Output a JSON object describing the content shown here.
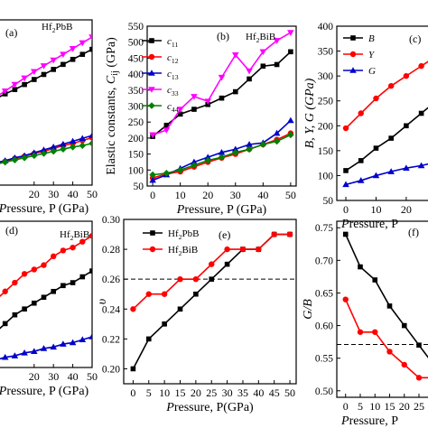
{
  "chart_data": [
    {
      "panel": "(a)",
      "type": "line",
      "title": "",
      "inset_label": "Hf2PbB",
      "xlabel": "Pressure, P (GPa)",
      "ylabel": "",
      "xlim": [
        0,
        50
      ],
      "ylim": [
        50,
        280
      ],
      "xticks": [
        20,
        30,
        40,
        50
      ],
      "yticks": [],
      "series": [
        {
          "name": "c11",
          "color": "#000000",
          "marker": "square",
          "x": [
            0,
            5,
            10,
            15,
            20,
            25,
            30,
            35,
            40,
            45,
            50
          ],
          "y": [
            170,
            177,
            183,
            190,
            197,
            204,
            211,
            218,
            225,
            232,
            239
          ]
        },
        {
          "name": "c33",
          "color": "#ff00ff",
          "marker": "triangle-down",
          "x": [
            0,
            5,
            10,
            15,
            20,
            25,
            30,
            35,
            40,
            45,
            50
          ],
          "y": [
            172,
            181,
            190,
            199,
            208,
            216,
            224,
            232,
            240,
            248,
            256
          ]
        },
        {
          "name": "c12",
          "color": "#ff0000",
          "marker": "circle",
          "x": [
            0,
            5,
            10,
            15,
            20,
            25,
            30,
            35,
            40,
            45,
            50
          ],
          "y": [
            80,
            83,
            87,
            90,
            94,
            97,
            101,
            105,
            108,
            112,
            116
          ]
        },
        {
          "name": "c13",
          "color": "#0000cc",
          "marker": "triangle-up",
          "x": [
            0,
            5,
            10,
            15,
            20,
            25,
            30,
            35,
            40,
            45,
            50
          ],
          "y": [
            81,
            84,
            88,
            91,
            95,
            99,
            103,
            107,
            111,
            115,
            119
          ]
        },
        {
          "name": "c44",
          "color": "#008000",
          "marker": "diamond",
          "x": [
            0,
            5,
            10,
            15,
            20,
            25,
            30,
            35,
            40,
            45,
            50
          ],
          "y": [
            79,
            82,
            85,
            88,
            91,
            94,
            97,
            100,
            103,
            105,
            108
          ]
        }
      ]
    },
    {
      "panel": "(b)",
      "type": "line",
      "title": "",
      "inset_label": "Hf2BiB",
      "xlabel": "Pressure, P (GPa)",
      "ylabel": "Elastic constants, Cij (GPa)",
      "xlim": [
        -2,
        52
      ],
      "ylim": [
        50,
        550
      ],
      "xticks": [
        0,
        10,
        20,
        30,
        40,
        50
      ],
      "yticks": [
        50,
        100,
        150,
        200,
        250,
        300,
        350,
        400,
        450,
        500,
        550
      ],
      "legend": [
        "c11",
        "c12",
        "c13",
        "c33",
        "c44"
      ],
      "series": [
        {
          "name": "c11",
          "color": "#000000",
          "marker": "square",
          "x": [
            0,
            5,
            10,
            15,
            20,
            25,
            30,
            35,
            40,
            45,
            50
          ],
          "y": [
            205,
            240,
            275,
            290,
            305,
            325,
            345,
            385,
            425,
            430,
            470
          ]
        },
        {
          "name": "c12",
          "color": "#ff0000",
          "marker": "circle",
          "x": [
            0,
            5,
            10,
            15,
            20,
            25,
            30,
            35,
            40,
            45,
            50
          ],
          "y": [
            75,
            88,
            95,
            110,
            125,
            138,
            150,
            165,
            180,
            195,
            215
          ]
        },
        {
          "name": "c13",
          "color": "#0000cc",
          "marker": "triangle-up",
          "x": [
            0,
            5,
            10,
            15,
            20,
            25,
            30,
            35,
            40,
            45,
            50
          ],
          "y": [
            68,
            85,
            105,
            125,
            140,
            155,
            165,
            180,
            185,
            215,
            255
          ]
        },
        {
          "name": "c33",
          "color": "#ff00ff",
          "marker": "triangle-down",
          "x": [
            0,
            5,
            10,
            15,
            20,
            25,
            30,
            35,
            40,
            45,
            50
          ],
          "y": [
            210,
            225,
            290,
            330,
            315,
            390,
            460,
            410,
            470,
            505,
            530
          ]
        },
        {
          "name": "c44",
          "color": "#008000",
          "marker": "diamond",
          "x": [
            0,
            5,
            10,
            15,
            20,
            25,
            30,
            35,
            40,
            45,
            50
          ],
          "y": [
            85,
            90,
            100,
            115,
            130,
            140,
            155,
            165,
            180,
            190,
            210
          ]
        }
      ]
    },
    {
      "panel": "(c)",
      "type": "line",
      "title": "",
      "xlabel": "Pressure, P",
      "ylabel": "B, Y, G (GPa)",
      "xlim": [
        -3,
        32
      ],
      "ylim": [
        50,
        400
      ],
      "xticks": [
        0,
        10,
        20,
        30
      ],
      "yticks": [
        50,
        100,
        150,
        200,
        250,
        300,
        350,
        400
      ],
      "legend": [
        "B",
        "Y",
        "G"
      ],
      "series": [
        {
          "name": "B",
          "color": "#000000",
          "marker": "square",
          "x": [
            0,
            5,
            10,
            15,
            20,
            25,
            30
          ],
          "y": [
            110,
            130,
            155,
            175,
            200,
            225,
            250
          ]
        },
        {
          "name": "Y",
          "color": "#ff0000",
          "marker": "circle",
          "x": [
            0,
            5,
            10,
            15,
            20,
            25,
            30
          ],
          "y": [
            195,
            225,
            255,
            280,
            300,
            320,
            340
          ]
        },
        {
          "name": "G",
          "color": "#0000cc",
          "marker": "triangle-up",
          "x": [
            0,
            5,
            10,
            15,
            20,
            25,
            30
          ],
          "y": [
            82,
            90,
            100,
            108,
            115,
            120,
            127
          ]
        }
      ]
    },
    {
      "panel": "(d)",
      "type": "line",
      "title": "",
      "inset_label": "Hf2BiB",
      "xlabel": "Pressure, P (GPa)",
      "ylabel": "",
      "xlim": [
        0,
        50
      ],
      "ylim": [
        0,
        100
      ],
      "xticks": [
        20,
        30,
        40,
        50
      ],
      "yticks": [],
      "series": [
        {
          "name": "Y",
          "color": "#ff0000",
          "marker": "circle",
          "x": [
            0,
            5,
            10,
            15,
            20,
            25,
            30,
            35,
            40,
            45,
            50
          ],
          "y": [
            46,
            52,
            58,
            64,
            67,
            70,
            76,
            80,
            82,
            86,
            90
          ]
        },
        {
          "name": "B",
          "color": "#000000",
          "marker": "square",
          "x": [
            0,
            5,
            10,
            15,
            20,
            25,
            30,
            35,
            40,
            45,
            50
          ],
          "y": [
            24,
            30,
            36,
            40,
            44,
            48,
            52,
            56,
            58,
            62,
            66
          ]
        },
        {
          "name": "G",
          "color": "#0000cc",
          "marker": "triangle-up",
          "x": [
            0,
            5,
            10,
            15,
            20,
            25,
            30,
            35,
            40,
            45,
            50
          ],
          "y": [
            5,
            7,
            8,
            10,
            11,
            13,
            14,
            16,
            17,
            19,
            21
          ]
        }
      ]
    },
    {
      "panel": "(e)",
      "type": "line",
      "title": "",
      "xlabel": "Pressure, P(GPa)",
      "ylabel": "υ",
      "xlim": [
        -3,
        52
      ],
      "ylim": [
        0.19,
        0.3
      ],
      "xticks": [
        0,
        5,
        10,
        15,
        20,
        25,
        30,
        35,
        40,
        45,
        50
      ],
      "yticks": [
        0.2,
        0.22,
        0.24,
        0.26,
        0.28,
        0.3
      ],
      "reference_line": 0.26,
      "legend": [
        "Hf2PbB",
        "Hf2BiB"
      ],
      "series": [
        {
          "name": "Hf2PbB",
          "color": "#000000",
          "marker": "square",
          "x": [
            0,
            5,
            10,
            15,
            20,
            25,
            30,
            35,
            40,
            45,
            50
          ],
          "y": [
            0.2,
            0.22,
            0.23,
            0.24,
            0.25,
            0.26,
            0.27,
            0.28,
            0.28,
            0.29,
            0.29
          ]
        },
        {
          "name": "Hf2BiB",
          "color": "#ff0000",
          "marker": "circle",
          "x": [
            0,
            5,
            10,
            15,
            20,
            25,
            30,
            35,
            40,
            45,
            50
          ],
          "y": [
            0.24,
            0.25,
            0.25,
            0.26,
            0.26,
            0.27,
            0.28,
            0.28,
            0.28,
            0.29,
            0.29
          ]
        }
      ]
    },
    {
      "panel": "(f)",
      "type": "line",
      "title": "",
      "xlabel": "Pressure, P",
      "ylabel": "G/B",
      "xlim": [
        -3,
        33
      ],
      "ylim": [
        0.49,
        0.76
      ],
      "xticks": [
        0,
        5,
        10,
        15,
        20,
        25,
        30
      ],
      "yticks": [
        0.5,
        0.55,
        0.6,
        0.65,
        0.7,
        0.75
      ],
      "reference_line": 0.571,
      "series": [
        {
          "name": "Hf2PbB",
          "color": "#000000",
          "marker": "square",
          "x": [
            0,
            5,
            10,
            15,
            20,
            25,
            30
          ],
          "y": [
            0.74,
            0.69,
            0.67,
            0.63,
            0.6,
            0.57,
            0.54
          ]
        },
        {
          "name": "Hf2BiB",
          "color": "#ff0000",
          "marker": "circle",
          "x": [
            0,
            5,
            10,
            15,
            20,
            25,
            30
          ],
          "y": [
            0.64,
            0.59,
            0.59,
            0.56,
            0.54,
            0.52,
            0.52
          ]
        }
      ]
    }
  ]
}
